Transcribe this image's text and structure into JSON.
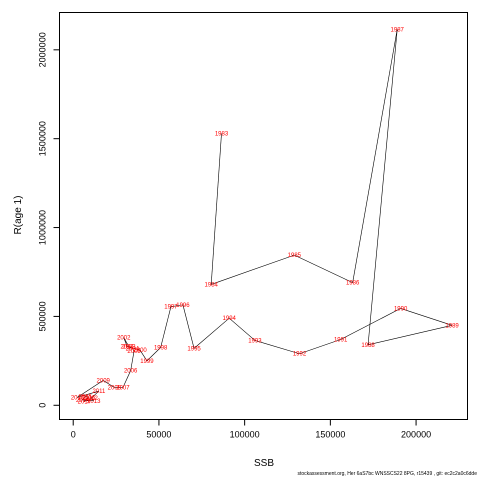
{
  "chart_data": {
    "type": "line",
    "xlabel": "SSB",
    "ylabel": "R(age 1)",
    "xlim": [
      -8000,
      230000
    ],
    "ylim": [
      -80000,
      2210000
    ],
    "x_ticks": [
      0,
      50000,
      100000,
      150000,
      200000
    ],
    "x_tick_labels": [
      "0",
      "50000",
      "100000",
      "150000",
      "200000"
    ],
    "y_ticks": [
      0,
      500000,
      1000000,
      1500000,
      2000000
    ],
    "y_tick_labels": [
      "0",
      "500000",
      "1000000",
      "1500000",
      "2000000"
    ],
    "grid": false,
    "series": [
      {
        "color": "#ff0000",
        "points": [
          {
            "label": "1983",
            "x": 86500,
            "y": 1530000
          },
          {
            "label": "1984",
            "x": 80500,
            "y": 680000
          },
          {
            "label": "1985",
            "x": 129000,
            "y": 845000
          },
          {
            "label": "1986",
            "x": 163000,
            "y": 690000
          },
          {
            "label": "1987",
            "x": 189000,
            "y": 2115000
          },
          {
            "label": "1988",
            "x": 172000,
            "y": 340000
          },
          {
            "label": "1989",
            "x": 221000,
            "y": 450000
          },
          {
            "label": "1990",
            "x": 191000,
            "y": 545000
          },
          {
            "label": "1991",
            "x": 156000,
            "y": 370000
          },
          {
            "label": "1992",
            "x": 132000,
            "y": 290000
          },
          {
            "label": "1993",
            "x": 106000,
            "y": 365000
          },
          {
            "label": "1994",
            "x": 91000,
            "y": 490000
          },
          {
            "label": "1995",
            "x": 70500,
            "y": 320000
          },
          {
            "label": "1996",
            "x": 64000,
            "y": 565000
          },
          {
            "label": "1997",
            "x": 57000,
            "y": 555000
          },
          {
            "label": "1998",
            "x": 51000,
            "y": 325000
          },
          {
            "label": "1999",
            "x": 43000,
            "y": 250000
          },
          {
            "label": "2000",
            "x": 39000,
            "y": 310000
          },
          {
            "label": "2001",
            "x": 31500,
            "y": 330000
          },
          {
            "label": "2002",
            "x": 29500,
            "y": 380000
          },
          {
            "label": "2003",
            "x": 32500,
            "y": 330000
          },
          {
            "label": "2004",
            "x": 34500,
            "y": 320000
          },
          {
            "label": "2005",
            "x": 35500,
            "y": 305000
          },
          {
            "label": "2006",
            "x": 33500,
            "y": 195000
          },
          {
            "label": "2007",
            "x": 29000,
            "y": 100000
          },
          {
            "label": "2008",
            "x": 24000,
            "y": 100000
          },
          {
            "label": "2009",
            "x": 17500,
            "y": 140000
          },
          {
            "label": "2010",
            "x": 2500,
            "y": 45000
          },
          {
            "label": "2011",
            "x": 15000,
            "y": 80000
          },
          {
            "label": "2012",
            "x": 10500,
            "y": 40000
          },
          {
            "label": "2013",
            "x": 12000,
            "y": 25000
          },
          {
            "label": "2014",
            "x": 5500,
            "y": 30000
          },
          {
            "label": "2015",
            "x": 7000,
            "y": 50000
          },
          {
            "label": "2016",
            "x": 9000,
            "y": 45000
          },
          {
            "label": "2017",
            "x": 6500,
            "y": 22000
          }
        ]
      }
    ]
  },
  "footer_text": "stockassessment.org, Her 6aS7bc WNSSCS22 8PG, r15439 , git: ec2c2a0c6dde"
}
